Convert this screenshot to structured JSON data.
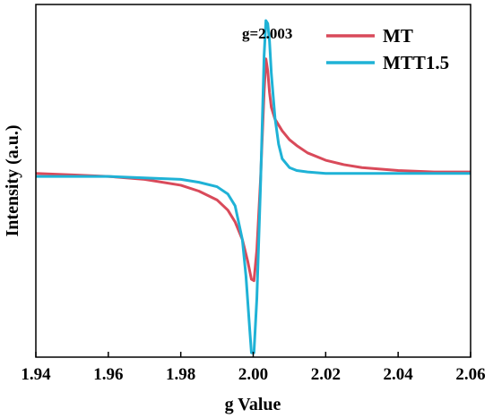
{
  "chart_data": {
    "type": "line",
    "xlabel": "g Value",
    "ylabel": "Intensity (a.u.)",
    "xlim": [
      1.94,
      2.06
    ],
    "ylim": [
      -1.25,
      1.15
    ],
    "x_ticks": [
      "1.94",
      "1.96",
      "1.98",
      "2.00",
      "2.02",
      "2.04",
      "2.06"
    ],
    "x_tick_values": [
      1.94,
      1.96,
      1.98,
      2.0,
      2.02,
      2.04,
      2.06
    ],
    "grid": false,
    "legend_position": "top-right",
    "annotation": {
      "text": "g=2.003",
      "x": 2.003
    },
    "series": [
      {
        "name": "MT",
        "color": "#d94a5a",
        "points": [
          [
            1.94,
            0.0
          ],
          [
            1.95,
            -0.01
          ],
          [
            1.96,
            -0.02
          ],
          [
            1.97,
            -0.04
          ],
          [
            1.98,
            -0.08
          ],
          [
            1.985,
            -0.12
          ],
          [
            1.99,
            -0.18
          ],
          [
            1.993,
            -0.25
          ],
          [
            1.995,
            -0.33
          ],
          [
            1.997,
            -0.45
          ],
          [
            1.9985,
            -0.6
          ],
          [
            1.9995,
            -0.72
          ],
          [
            2.0002,
            -0.73
          ],
          [
            2.001,
            -0.52
          ],
          [
            2.002,
            -0.05
          ],
          [
            2.003,
            0.55
          ],
          [
            2.0035,
            0.78
          ],
          [
            2.004,
            0.7
          ],
          [
            2.0045,
            0.55
          ],
          [
            2.005,
            0.45
          ],
          [
            2.006,
            0.37
          ],
          [
            2.008,
            0.29
          ],
          [
            2.01,
            0.23
          ],
          [
            2.012,
            0.19
          ],
          [
            2.015,
            0.14
          ],
          [
            2.02,
            0.09
          ],
          [
            2.025,
            0.06
          ],
          [
            2.03,
            0.04
          ],
          [
            2.04,
            0.02
          ],
          [
            2.05,
            0.01
          ],
          [
            2.06,
            0.01
          ]
        ]
      },
      {
        "name": "MTT1.5",
        "color": "#1fb2d6",
        "points": [
          [
            1.94,
            -0.02
          ],
          [
            1.95,
            -0.02
          ],
          [
            1.96,
            -0.02
          ],
          [
            1.97,
            -0.03
          ],
          [
            1.98,
            -0.04
          ],
          [
            1.985,
            -0.06
          ],
          [
            1.99,
            -0.09
          ],
          [
            1.993,
            -0.14
          ],
          [
            1.995,
            -0.22
          ],
          [
            1.997,
            -0.45
          ],
          [
            1.998,
            -0.7
          ],
          [
            1.999,
            -1.05
          ],
          [
            1.9995,
            -1.22
          ],
          [
            2.0002,
            -1.22
          ],
          [
            2.001,
            -0.85
          ],
          [
            2.002,
            -0.1
          ],
          [
            2.003,
            0.8
          ],
          [
            2.0035,
            1.04
          ],
          [
            2.004,
            1.02
          ],
          [
            2.0045,
            0.9
          ],
          [
            2.005,
            0.68
          ],
          [
            2.006,
            0.38
          ],
          [
            2.007,
            0.2
          ],
          [
            2.008,
            0.1
          ],
          [
            2.01,
            0.04
          ],
          [
            2.012,
            0.02
          ],
          [
            2.015,
            0.01
          ],
          [
            2.02,
            0.0
          ],
          [
            2.04,
            0.0
          ],
          [
            2.06,
            0.0
          ]
        ]
      }
    ]
  }
}
